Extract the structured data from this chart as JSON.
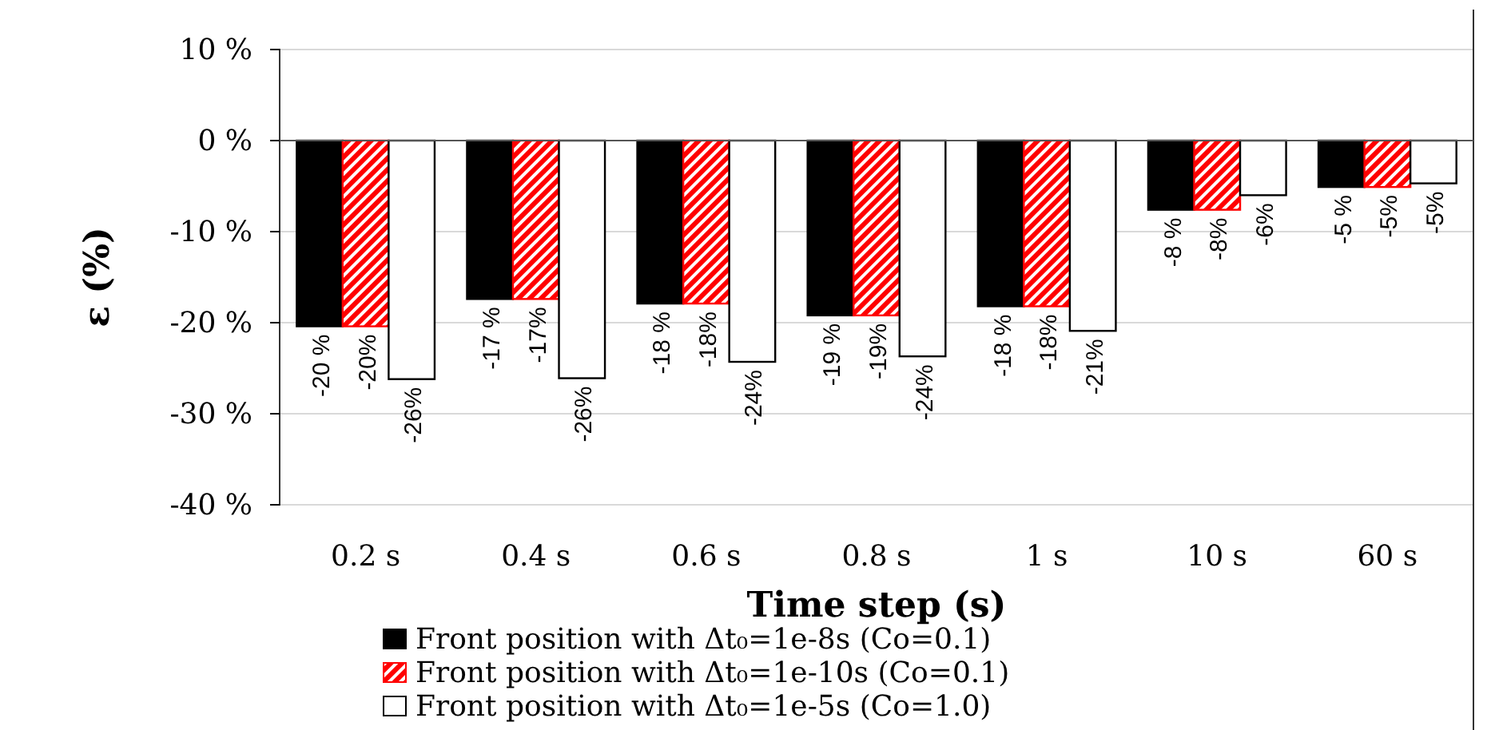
{
  "chart_data": {
    "type": "bar",
    "categories": [
      "0.2 s",
      "0.4 s",
      "0.6 s",
      "0.8 s",
      "1 s",
      "10 s",
      "60 s"
    ],
    "xlabel": "Time step (s)",
    "ylabel": "ε (%)",
    "ylim": [
      -40,
      10
    ],
    "yticks": [
      {
        "value": 10,
        "label": "10 %"
      },
      {
        "value": 0,
        "label": "0 %"
      },
      {
        "value": -10,
        "label": "-10 %"
      },
      {
        "value": -20,
        "label": "-20 %"
      },
      {
        "value": -30,
        "label": "-30 %"
      },
      {
        "value": -40,
        "label": "-40 %"
      }
    ],
    "grid": "y",
    "legend": "bottom",
    "series": [
      {
        "name": "Front position with Δt₀=1e-8s (Co=0.1)",
        "color": "#000000",
        "values": [
          -20.4,
          -17.4,
          -17.9,
          -19.2,
          -18.2,
          -7.6,
          -5.1
        ],
        "value_labels": [
          "-20 %",
          "-17 %",
          "-18 %",
          "-19 %",
          "-18 %",
          "-8 %",
          "-5 %"
        ]
      },
      {
        "name": "Front position with Δt₀=1e-10s (Co=0.1)",
        "color": "#ff0000",
        "values": [
          -20.4,
          -17.4,
          -17.9,
          -19.2,
          -18.2,
          -7.6,
          -5.1
        ],
        "value_labels": [
          "-20%",
          "-17%",
          "-18%",
          "-19%",
          "-18%",
          "-8%",
          "-5%"
        ]
      },
      {
        "name": "Front position with Δt₀=1e-5s (Co=1.0)",
        "color": "#ffffff",
        "values": [
          -26.2,
          -26.1,
          -24.3,
          -23.7,
          -20.9,
          -6.0,
          -4.7
        ],
        "value_labels": [
          "-26%",
          "-26%",
          "-24%",
          "-24%",
          "-21%",
          "-6%",
          "-5%"
        ]
      }
    ]
  }
}
